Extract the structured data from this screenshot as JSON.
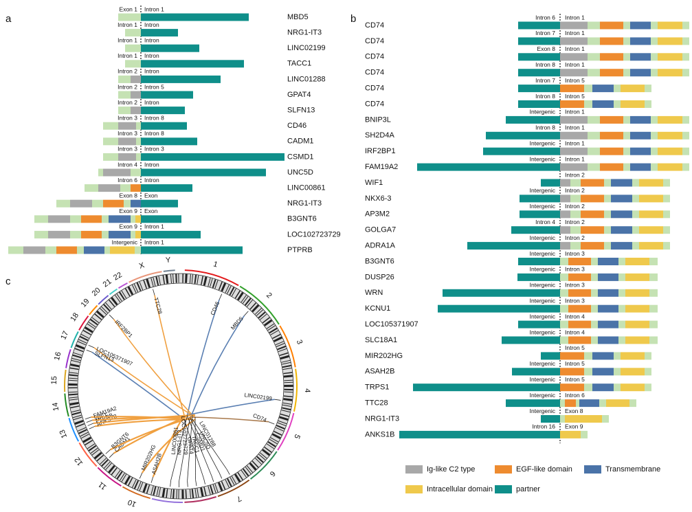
{
  "panel_a": {
    "label": "a",
    "rows": [
      {
        "left": "Exon 1",
        "right": "Intron 1",
        "gene": "MBD5"
      },
      {
        "left": "Intron 1",
        "right": "Intron",
        "gene": "NRG1-IT3"
      },
      {
        "left": "Intron 1",
        "right": "Intron",
        "gene": "LINC02199"
      },
      {
        "left": "Intron 1",
        "right": "Intron",
        "gene": "TACC1"
      },
      {
        "left": "Intron 2",
        "right": "Intron",
        "gene": "LINC01288"
      },
      {
        "left": "Intron 2",
        "right": "Intron 5",
        "gene": "GPAT4"
      },
      {
        "left": "Intron 2",
        "right": "Intron",
        "gene": "SLFN13"
      },
      {
        "left": "Intron 3",
        "right": "Intron 8",
        "gene": "CD46"
      },
      {
        "left": "Intron 3",
        "right": "Intron 8",
        "gene": "CADM1"
      },
      {
        "left": "Intron 3",
        "right": "Intron 3",
        "gene": "CSMD1"
      },
      {
        "left": "Intron 4",
        "right": "Intron",
        "gene": "UNC5D"
      },
      {
        "left": "Intron 6",
        "right": "Intron",
        "gene": "LINC00861"
      },
      {
        "left": "Exon 8",
        "right": "Exon",
        "gene": "NRG1-IT3"
      },
      {
        "left": "Exon 9",
        "right": "Exon",
        "gene": "B3GNT6"
      },
      {
        "left": "Exon 9",
        "right": "Intron 1",
        "gene": "LOC102723729"
      },
      {
        "left": "Intergenic",
        "right": "Intron 1",
        "gene": "PTPRB"
      }
    ]
  },
  "panel_b": {
    "label": "b",
    "rows": [
      {
        "left": "Intron 6",
        "right": "Intron 1",
        "gene": "CD74"
      },
      {
        "left": "Intron 7",
        "right": "Intron 1",
        "gene": "CD74"
      },
      {
        "left": "Exon 8",
        "right": "Intron 1",
        "gene": "CD74"
      },
      {
        "left": "Intron 8",
        "right": "Intron 1",
        "gene": "CD74"
      },
      {
        "left": "Intron 7",
        "right": "Intron 5",
        "gene": "CD74"
      },
      {
        "left": "Intron 8",
        "right": "Intron 5",
        "gene": "CD74"
      },
      {
        "left": "Intergenic",
        "right": "Intron 1",
        "gene": "BNIP3L"
      },
      {
        "left": "Intron 8",
        "right": "Intron 1",
        "gene": "SH2D4A"
      },
      {
        "left": "Intergenic",
        "right": "Intron 1",
        "gene": "IRF2BP1"
      },
      {
        "left": "Intergenic",
        "right": "Intron 1",
        "gene": "FAM19A2"
      },
      {
        "right": "Intron 2",
        "gene": "WIF1"
      },
      {
        "left": "Intergenic",
        "right": "Intron 2",
        "gene": "NKX6-3"
      },
      {
        "left": "Intergenic",
        "right": "Intron 2",
        "gene": "AP3M2"
      },
      {
        "left": "Intron 4",
        "right": "Intron 2",
        "gene": "GOLGA7"
      },
      {
        "left": "Intergenic",
        "right": "Intron 2",
        "gene": "ADRA1A"
      },
      {
        "left": "Intergenic",
        "right": "Intron 3",
        "gene": "B3GNT6"
      },
      {
        "left": "Intergenic",
        "right": "Intron 3",
        "gene": "DUSP26"
      },
      {
        "left": "Intergenic",
        "right": "Intron 3",
        "gene": "WRN"
      },
      {
        "left": "Intergenic",
        "right": "Intron 3",
        "gene": "KCNU1"
      },
      {
        "left": "Intergenic",
        "right": "Intron 4",
        "gene": "LOC105371907"
      },
      {
        "left": "Intergenic",
        "right": "Intron 4",
        "gene": "SLC18A1"
      },
      {
        "right": "Intron 5",
        "gene": "MIR202HG"
      },
      {
        "left": "Intergenic",
        "right": "Intron 5",
        "gene": "ASAH2B"
      },
      {
        "left": "Intergenic",
        "right": "Intron 5",
        "gene": "TRPS1"
      },
      {
        "left": "Intergenic",
        "right": "Intron 6",
        "gene": "TTC28"
      },
      {
        "left": "Intergenic",
        "right": "Exon 8",
        "gene": "NRG1-IT3"
      },
      {
        "left": "Intron 16",
        "right": "Exon 9",
        "gene": "ANKS1B"
      }
    ],
    "legend": [
      "Ig-like C2 type",
      "EGF-like domain",
      "Transmembrane",
      "Intracellular domain",
      "partner"
    ]
  },
  "panel_c": {
    "label": "c",
    "chromosomes": [
      "1",
      "2",
      "3",
      "4",
      "5",
      "6",
      "7",
      "8",
      "9",
      "10",
      "11",
      "12",
      "13",
      "14",
      "15",
      "16",
      "17",
      "18",
      "19",
      "20",
      "21",
      "22",
      "X",
      "Y"
    ],
    "genes": [
      "TTC28",
      "CD46",
      "MBD5",
      "IRF2BP1",
      "LOC105371907",
      "SLFN13",
      "LINC02199",
      "CD74",
      "ANKS1B",
      "PTPRB",
      "WIF1",
      "FAM19A2",
      "CADM1",
      "B3GNT6",
      "MIR202HG",
      "ASAH2B",
      "LINC00861",
      "NRG1-IT3",
      "LOC102723729",
      "GPAT4",
      "TACC1",
      "CSMD1",
      "UNC5D",
      "LINC01288"
    ]
  }
}
